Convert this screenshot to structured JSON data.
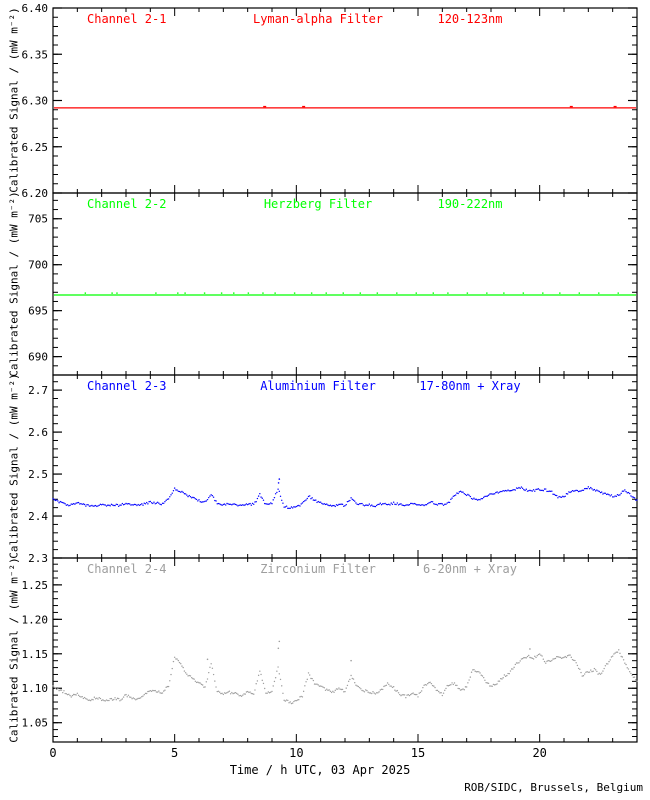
{
  "footer": {
    "credit": "ROB/SIDC, Brussels, Belgium"
  },
  "chart_data": {
    "type": "line",
    "xlabel": "Time / h UTC, 03 Apr 2025",
    "x_range": [
      0,
      24
    ],
    "x_major_ticks": [
      0,
      5,
      10,
      15,
      20
    ],
    "x_tick_labels": [
      "0",
      "5",
      "10",
      "15",
      "20"
    ],
    "x_minor_step": 1,
    "grid": "off",
    "legend": "none",
    "credit": "ROB/SIDC, Brussels, Belgium",
    "panels": [
      {
        "title_left": "Channel 2-1",
        "title_center": "Lyman-alpha Filter",
        "title_right": "120-123nm",
        "color": "#FF0000",
        "ylabel": "Calibrated Signal / (mW m⁻²)",
        "ylim": [
          6.2,
          6.4
        ],
        "yticks": [
          6.2,
          6.25,
          6.3,
          6.35,
          6.4
        ],
        "ytick_labels": [
          "6.20",
          "6.25",
          "6.30",
          "6.35",
          "6.40"
        ],
        "y_minor_step": 0.01,
        "series": {
          "style": "line",
          "constant": 6.292,
          "blips": [
            8.7,
            10.3,
            21.3,
            23.1
          ]
        }
      },
      {
        "title_left": "Channel 2-2",
        "title_center": "Herzberg Filter",
        "title_right": "190-222nm",
        "color": "#00FF00",
        "ylabel": "Calibrated Signal / (mW m⁻²)",
        "ylim": [
          688.0,
          707.8
        ],
        "yticks": [
          690,
          695,
          700,
          705
        ],
        "ytick_labels": [
          "690",
          "695",
          "700",
          "705"
        ],
        "y_minor_step": 1,
        "series": {
          "style": "line",
          "constant": 696.7,
          "speckles": [
            1.3,
            2.4,
            2.6,
            4.2,
            5.1,
            5.4,
            6.2,
            6.9,
            7.4,
            8.0,
            8.6,
            9.1,
            9.9,
            10.6,
            11.2,
            11.9,
            12.6,
            13.3,
            14.1,
            14.9,
            15.6,
            16.2,
            17.0,
            17.8,
            18.5,
            19.3,
            20.1,
            20.8,
            21.6,
            22.4,
            23.2
          ]
        }
      },
      {
        "title_left": "Channel 2-3",
        "title_center": "Aluminium Filter",
        "title_right": "17-80nm + Xray",
        "color": "#0000FF",
        "ylabel": "Calibrated Signal / (mW m⁻²)",
        "ylim": [
          2.3,
          2.736
        ],
        "yticks": [
          2.3,
          2.4,
          2.5,
          2.6,
          2.7
        ],
        "ytick_labels": [
          "2.3",
          "2.4",
          "2.5",
          "2.6",
          "2.7"
        ],
        "y_minor_step": 0.02,
        "series": {
          "style": "dots",
          "x_step": 0.25,
          "values": [
            2.442,
            2.433,
            2.428,
            2.426,
            2.431,
            2.427,
            2.424,
            2.424,
            2.426,
            2.424,
            2.427,
            2.425,
            2.431,
            2.428,
            2.425,
            2.429,
            2.433,
            2.431,
            2.429,
            2.441,
            2.466,
            2.458,
            2.449,
            2.443,
            2.437,
            2.433,
            2.452,
            2.429,
            2.427,
            2.429,
            2.427,
            2.426,
            2.429,
            2.427,
            2.451,
            2.427,
            2.429,
            2.465,
            2.423,
            2.419,
            2.421,
            2.429,
            2.448,
            2.437,
            2.431,
            2.426,
            2.424,
            2.427,
            2.425,
            2.443,
            2.429,
            2.427,
            2.426,
            2.425,
            2.429,
            2.427,
            2.431,
            2.427,
            2.425,
            2.432,
            2.427,
            2.426,
            2.434,
            2.429,
            2.427,
            2.431,
            2.449,
            2.457,
            2.451,
            2.441,
            2.439,
            2.446,
            2.451,
            2.456,
            2.461,
            2.459,
            2.464,
            2.467,
            2.461,
            2.461,
            2.463,
            2.462,
            2.457,
            2.444,
            2.447,
            2.457,
            2.461,
            2.459,
            2.469,
            2.461,
            2.457,
            2.451,
            2.447,
            2.451,
            2.461,
            2.449,
            2.438
          ],
          "outliers": [
            [
              9.3,
              2.488
            ],
            [
              9.27,
              2.479
            ]
          ]
        }
      },
      {
        "title_left": "Channel 2-4",
        "title_center": "Zirconium Filter",
        "title_right": "6-20nm + Xray",
        "color": "#9E9E9E",
        "ylabel": "Calibrated Signal / (mW m⁻²)",
        "ylim": [
          1.022,
          1.289
        ],
        "yticks": [
          1.05,
          1.1,
          1.15,
          1.2,
          1.25
        ],
        "ytick_labels": [
          "1.05",
          "1.10",
          "1.15",
          "1.20",
          "1.25"
        ],
        "y_minor_step": 0.01,
        "series": {
          "style": "dots",
          "x_step": 0.25,
          "values": [
            1.102,
            1.097,
            1.094,
            1.089,
            1.092,
            1.086,
            1.083,
            1.086,
            1.084,
            1.082,
            1.085,
            1.083,
            1.09,
            1.086,
            1.084,
            1.09,
            1.097,
            1.095,
            1.093,
            1.104,
            1.146,
            1.134,
            1.121,
            1.114,
            1.107,
            1.101,
            1.136,
            1.095,
            1.091,
            1.094,
            1.092,
            1.089,
            1.094,
            1.091,
            1.126,
            1.093,
            1.095,
            1.13,
            1.084,
            1.079,
            1.081,
            1.089,
            1.121,
            1.107,
            1.102,
            1.097,
            1.095,
            1.099,
            1.096,
            1.118,
            1.102,
            1.097,
            1.095,
            1.092,
            1.097,
            1.107,
            1.101,
            1.091,
            1.088,
            1.093,
            1.089,
            1.103,
            1.109,
            1.097,
            1.091,
            1.105,
            1.107,
            1.097,
            1.101,
            1.127,
            1.124,
            1.111,
            1.103,
            1.107,
            1.117,
            1.121,
            1.134,
            1.141,
            1.147,
            1.143,
            1.151,
            1.137,
            1.141,
            1.147,
            1.144,
            1.147,
            1.137,
            1.119,
            1.123,
            1.127,
            1.119,
            1.134,
            1.147,
            1.154,
            1.137,
            1.121,
            1.11
          ],
          "outliers": [
            [
              9.3,
              1.168
            ],
            [
              9.26,
              1.158
            ],
            [
              6.35,
              1.142
            ],
            [
              12.25,
              1.14
            ],
            [
              19.6,
              1.157
            ]
          ]
        }
      }
    ]
  }
}
